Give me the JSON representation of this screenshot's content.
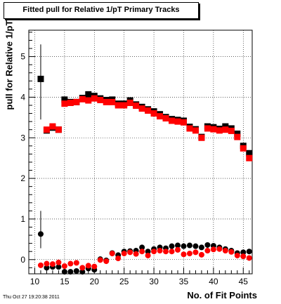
{
  "chart_data": {
    "type": "scatter",
    "title": "Fitted pull for Relative 1/pT Primary Tracks",
    "xlabel": "No. of Fit Points",
    "ylabel": "pull for Relative 1/pT",
    "xlim": [
      9,
      46.5
    ],
    "ylim": [
      -0.35,
      5.65
    ],
    "xticks": [
      10,
      15,
      20,
      25,
      30,
      35,
      40,
      45
    ],
    "yticks": [
      0,
      1,
      2,
      3,
      4,
      5
    ],
    "grid": true,
    "timestamp": "Thu Oct 27 19:20:38 2011",
    "series": [
      {
        "marker": "square",
        "color": "#000000",
        "x": [
          11,
          12,
          13,
          14,
          15,
          16,
          17,
          18,
          19,
          20,
          21,
          22,
          23,
          24,
          25,
          26,
          27,
          28,
          29,
          30,
          31,
          32,
          33,
          34,
          35,
          36,
          37,
          38,
          39,
          40,
          41,
          42,
          43,
          44,
          45,
          46
        ],
        "y": [
          4.45,
          3.18,
          3.25,
          3.2,
          3.94,
          3.88,
          3.88,
          3.98,
          4.07,
          4.03,
          3.97,
          3.93,
          3.94,
          3.84,
          3.84,
          3.92,
          3.82,
          3.76,
          3.7,
          3.65,
          3.58,
          3.51,
          3.46,
          3.44,
          3.42,
          3.27,
          3.21,
          3.02,
          3.28,
          3.26,
          3.22,
          3.28,
          3.23,
          3.1,
          2.8,
          2.62
        ]
      },
      {
        "marker": "square",
        "color": "#ff0000",
        "x": [
          12,
          13,
          14,
          15,
          16,
          17,
          18,
          19,
          20,
          21,
          22,
          23,
          24,
          25,
          26,
          27,
          28,
          29,
          30,
          31,
          32,
          33,
          34,
          35,
          36,
          37,
          38,
          39,
          40,
          41,
          42,
          43,
          44,
          45,
          46
        ],
        "y": [
          3.2,
          3.28,
          3.2,
          3.84,
          3.86,
          3.88,
          3.95,
          3.92,
          3.97,
          3.93,
          3.88,
          3.88,
          3.8,
          3.8,
          3.86,
          3.79,
          3.72,
          3.67,
          3.6,
          3.53,
          3.48,
          3.42,
          3.4,
          3.38,
          3.23,
          3.18,
          3.0,
          3.23,
          3.21,
          3.18,
          3.2,
          3.17,
          3.02,
          2.74,
          2.5
        ]
      },
      {
        "marker": "circle",
        "color": "#000000",
        "x": [
          11,
          12,
          13,
          14,
          15,
          16,
          17,
          18,
          19,
          20,
          21,
          22,
          23,
          24,
          25,
          26,
          27,
          28,
          29,
          30,
          31,
          32,
          33,
          34,
          35,
          36,
          37,
          38,
          39,
          40,
          41,
          42,
          43,
          44,
          45,
          46
        ],
        "y": [
          0.63,
          -0.2,
          -0.18,
          -0.18,
          -0.3,
          -0.3,
          -0.28,
          -0.3,
          -0.22,
          -0.25,
          0.01,
          -0.02,
          0.16,
          0.11,
          0.2,
          0.21,
          0.22,
          0.3,
          0.2,
          0.26,
          0.3,
          0.28,
          0.33,
          0.35,
          0.33,
          0.35,
          0.33,
          0.3,
          0.36,
          0.34,
          0.3,
          0.26,
          0.22,
          0.16,
          0.18,
          0.2
        ]
      },
      {
        "marker": "circle",
        "color": "#ff0000",
        "x": [
          11,
          12,
          13,
          14,
          15,
          16,
          17,
          18,
          19,
          20,
          21,
          22,
          23,
          24,
          25,
          26,
          27,
          28,
          29,
          30,
          31,
          32,
          33,
          34,
          35,
          36,
          37,
          38,
          39,
          40,
          41,
          42,
          43,
          44,
          45,
          46
        ],
        "y": [
          -0.14,
          -0.1,
          -0.11,
          -0.07,
          -0.16,
          -0.1,
          -0.08,
          -0.2,
          -0.15,
          -0.17,
          -0.01,
          -0.04,
          0.15,
          0.03,
          0.15,
          0.18,
          0.14,
          0.2,
          0.1,
          0.2,
          0.22,
          0.2,
          0.2,
          0.24,
          0.13,
          0.15,
          0.18,
          0.12,
          0.22,
          0.25,
          0.26,
          0.22,
          0.19,
          0.1,
          0.08,
          0.04
        ]
      }
    ],
    "error_bars": [
      {
        "x": 11,
        "ylow": 3.45,
        "yhigh": 5.3,
        "color": "#000000"
      },
      {
        "x": 11,
        "ylow": 0.28,
        "yhigh": 1.2,
        "color": "#000000"
      }
    ]
  }
}
